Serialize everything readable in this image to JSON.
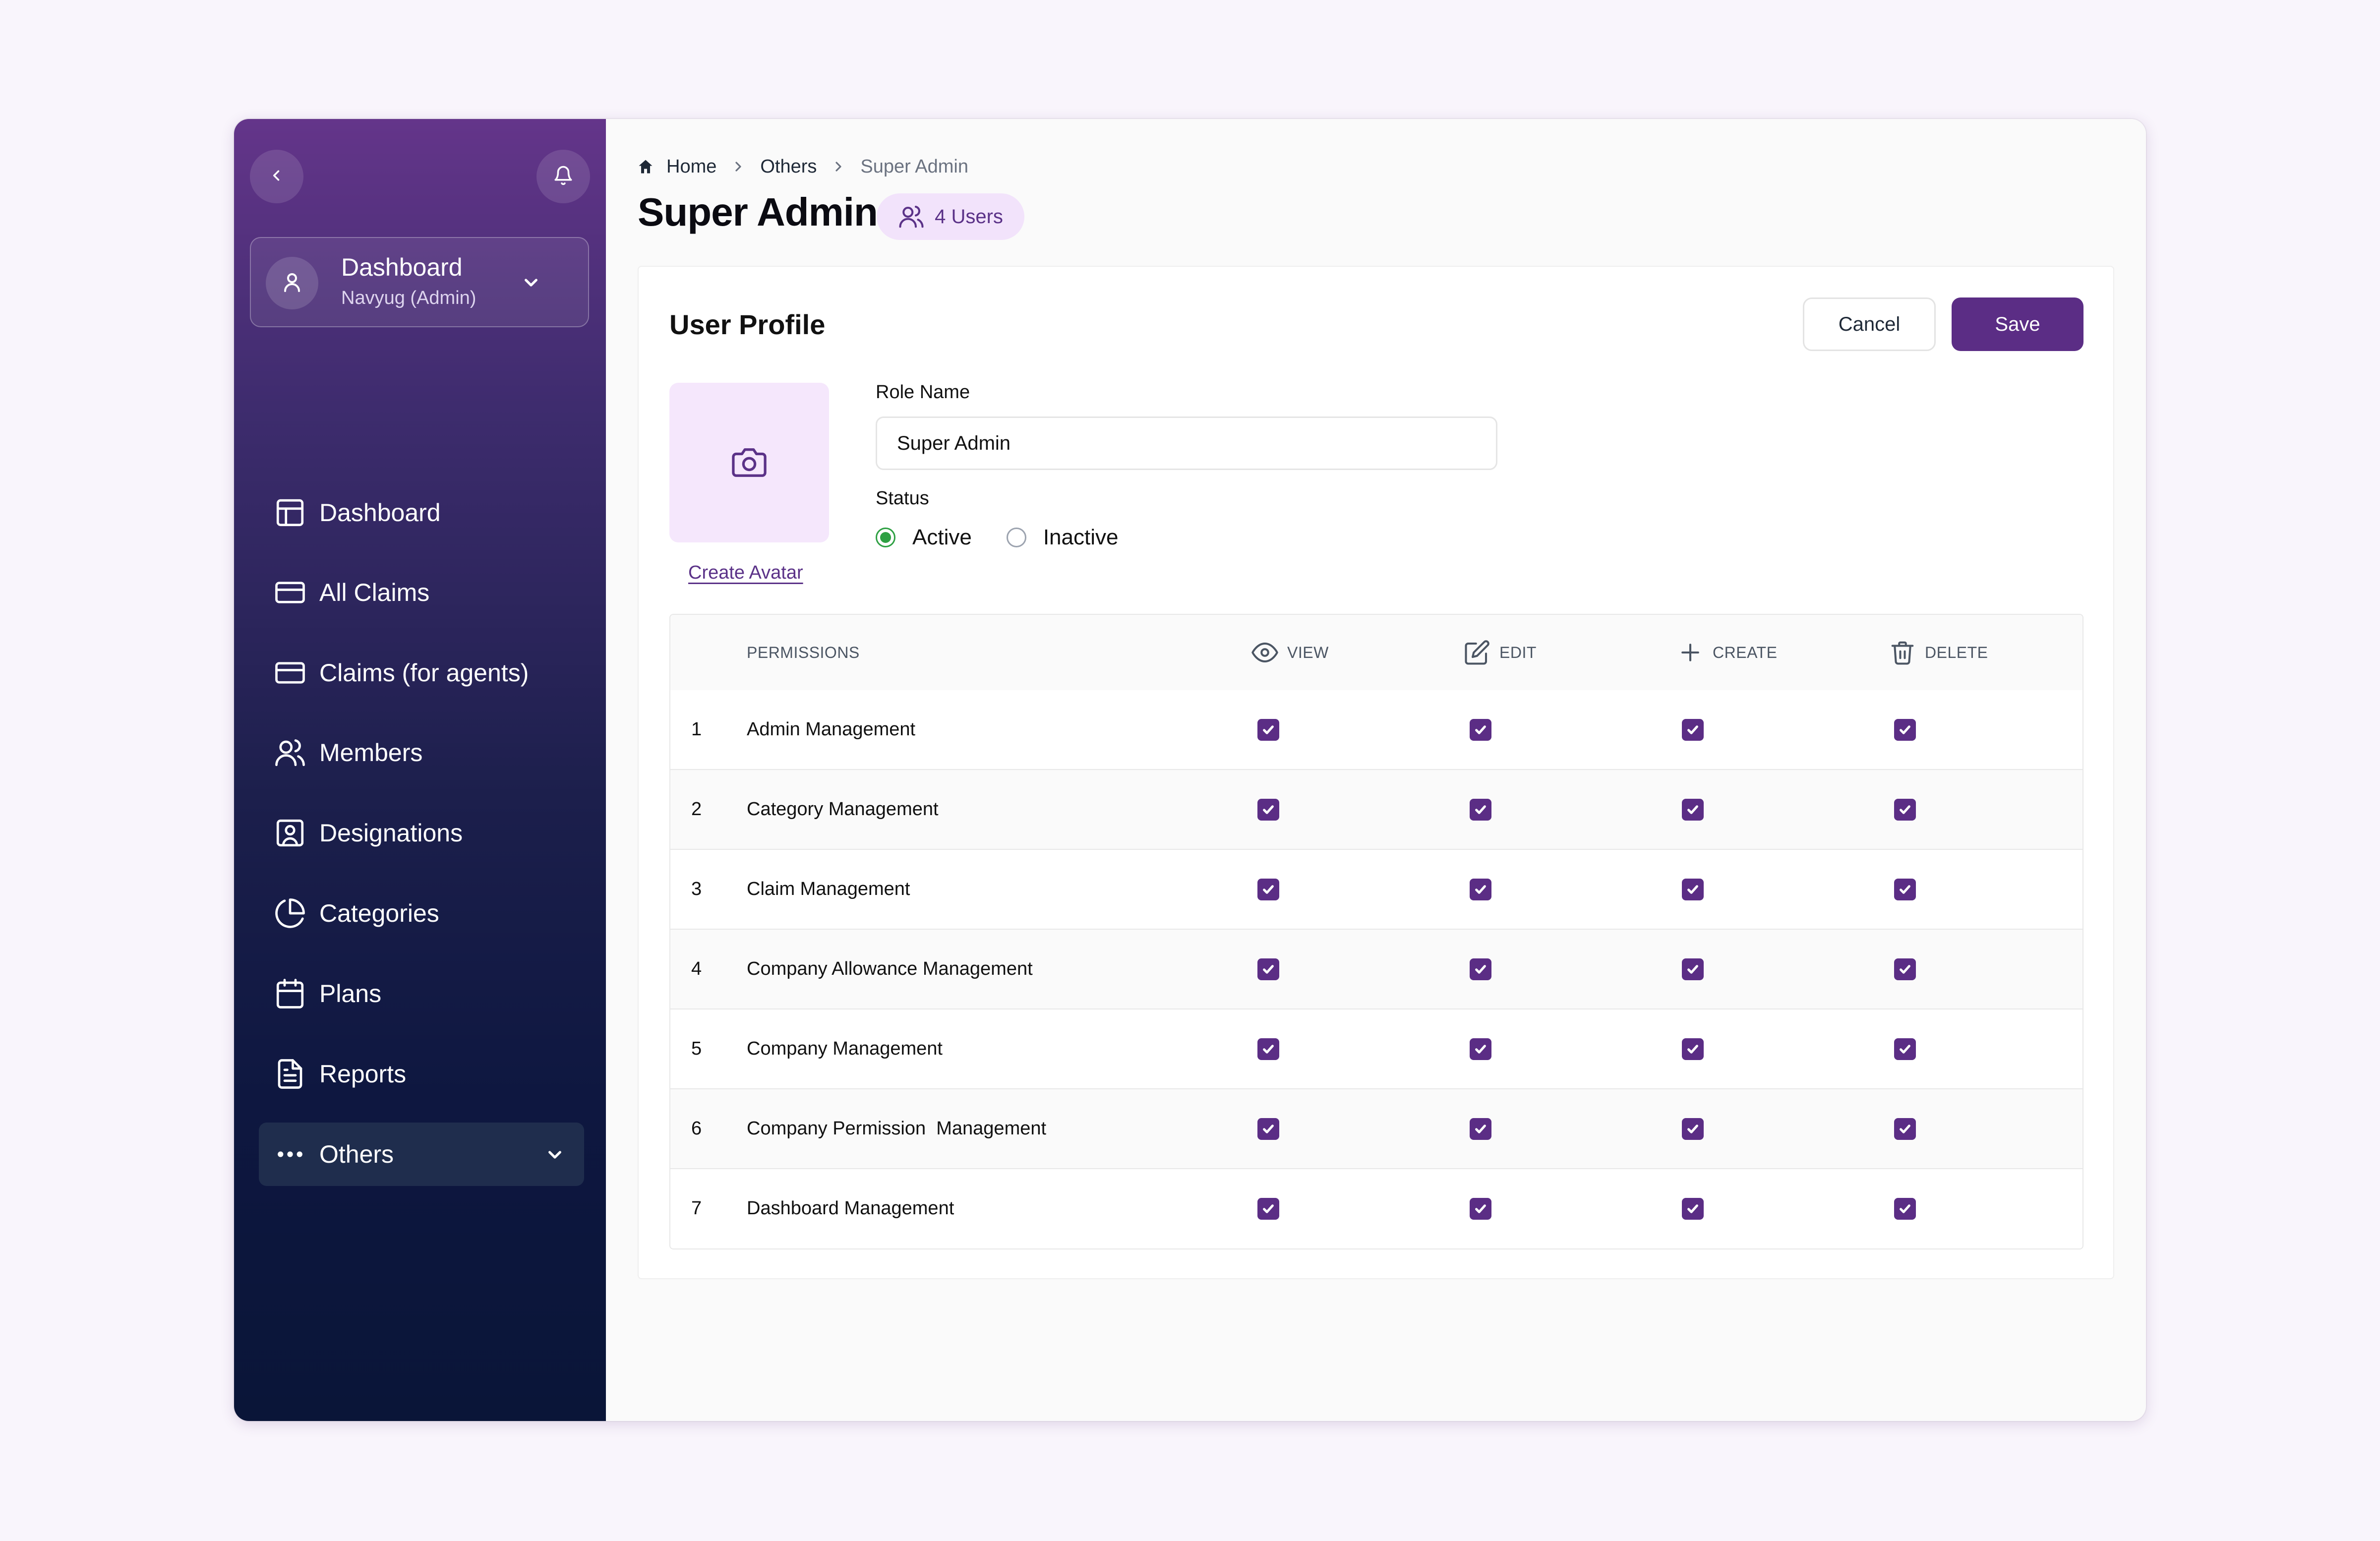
{
  "sidebar": {
    "collapse_icon": "chevron-left-icon",
    "notification_icon": "bell-icon",
    "account": {
      "name": "Dashboard",
      "role": "Navyug (Admin)",
      "icon": "user-icon"
    },
    "items": [
      {
        "label": "Dashboard",
        "icon": "layout-icon"
      },
      {
        "label": "All Claims",
        "icon": "credit-card-icon"
      },
      {
        "label": "Claims (for agents)",
        "icon": "credit-card-icon"
      },
      {
        "label": "Members",
        "icon": "users-icon"
      },
      {
        "label": "Designations",
        "icon": "id-card-icon"
      },
      {
        "label": "Categories",
        "icon": "pie-chart-icon"
      },
      {
        "label": "Plans",
        "icon": "calendar-icon"
      },
      {
        "label": "Reports",
        "icon": "file-text-icon"
      },
      {
        "label": "Others",
        "icon": "more-horizontal-icon",
        "active": true
      }
    ]
  },
  "breadcrumb": {
    "home": "Home",
    "parent": "Others",
    "current": "Super Admin"
  },
  "header": {
    "title": "Super Admin",
    "users_badge": "4 Users"
  },
  "profile": {
    "title": "User Profile",
    "cancel_label": "Cancel",
    "save_label": "Save",
    "create_avatar_label": "Create Avatar",
    "role_name_label": "Role Name",
    "role_name_value": "Super Admin",
    "status_label": "Status",
    "status_options": [
      "Active",
      "Inactive"
    ],
    "status_selected": "Active"
  },
  "permissions": {
    "columns": {
      "permissions": "PERMISSIONS",
      "view": "VIEW",
      "edit": "EDIT",
      "create": "CREATE",
      "delete": "DELETE"
    },
    "rows": [
      {
        "num": "1",
        "name": "Admin Management",
        "view": true,
        "edit": true,
        "create": true,
        "delete": true
      },
      {
        "num": "2",
        "name": "Category Management",
        "view": true,
        "edit": true,
        "create": true,
        "delete": true
      },
      {
        "num": "3",
        "name": "Claim Management",
        "view": true,
        "edit": true,
        "create": true,
        "delete": true
      },
      {
        "num": "4",
        "name": "Company Allowance Management",
        "view": true,
        "edit": true,
        "create": true,
        "delete": true
      },
      {
        "num": "5",
        "name": "Company Management",
        "view": true,
        "edit": true,
        "create": true,
        "delete": true
      },
      {
        "num": "6",
        "name": "Company Permission  Management",
        "view": true,
        "edit": true,
        "create": true,
        "delete": true
      },
      {
        "num": "7",
        "name": "Dashboard Management",
        "view": true,
        "edit": true,
        "create": true,
        "delete": true
      }
    ]
  },
  "colors": {
    "accent": "#5b2d85",
    "badge_bg": "#f2e3fb",
    "active_status": "#2ea043",
    "sidebar_top": "#64358a",
    "sidebar_bottom": "#0a1538"
  }
}
